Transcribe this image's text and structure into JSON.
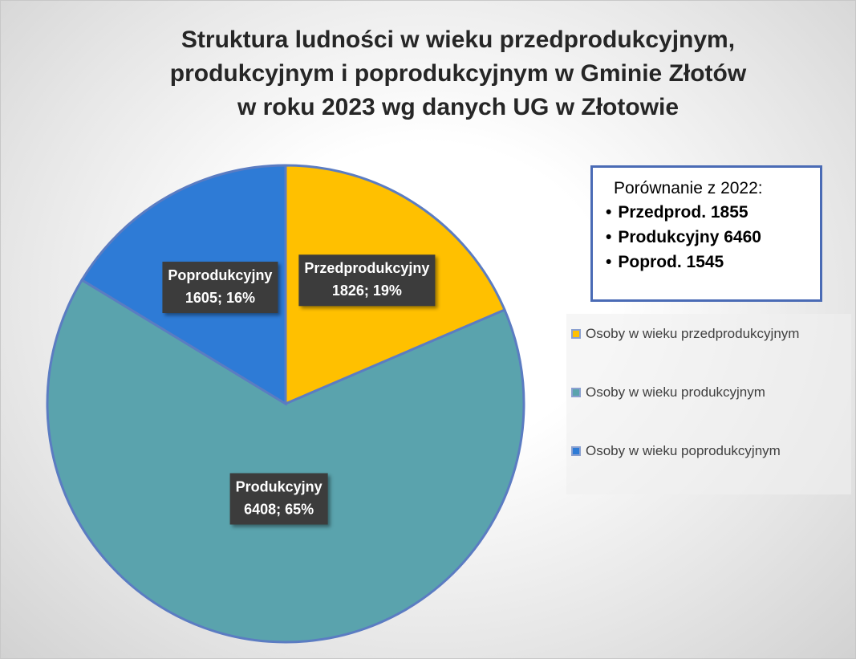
{
  "chart_data": {
    "type": "pie",
    "title": [
      "Struktura ludności w wieku przedprodukcyjnym,",
      "produkcyjnym i poprodukcyjnym w Gminie Złotów",
      "w roku 2023 wg danych UG w Złotowie"
    ],
    "categories": [
      "Osoby w wieku przedprodukcyjnym",
      "Osoby w wieku produkcyjnym",
      "Osoby w wieku poprodukcyjnym"
    ],
    "values": [
      1826,
      6408,
      1605
    ],
    "label_names": [
      "Przedprodukcyjny",
      "Produkcyjny",
      "Poprodukcyjny"
    ],
    "value_labels": [
      "1826; 19%",
      "6408; 65%",
      "1605; 16%"
    ],
    "colors": [
      "#ffc000",
      "#5aa3ad",
      "#2e7bd6"
    ],
    "legend": "right",
    "annotation": {
      "title": "Porównanie z 2022:",
      "items": [
        "Przedprod. 1855",
        "Produkcyjny 6460",
        "Poprod. 1545"
      ]
    }
  }
}
